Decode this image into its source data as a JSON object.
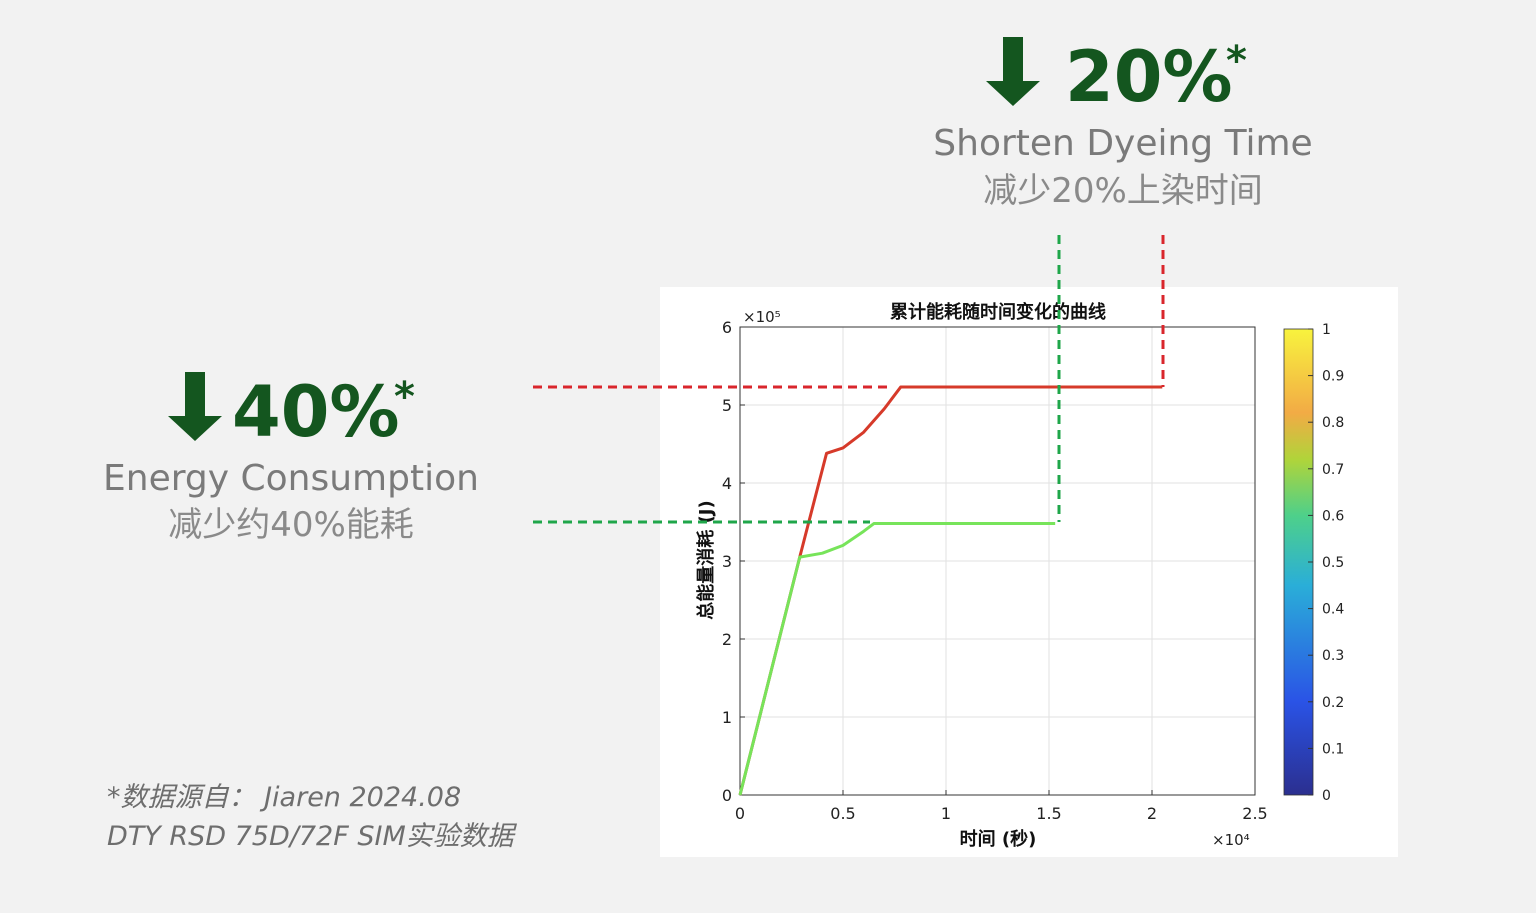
{
  "slide": {
    "right": {
      "percent": "20%",
      "star": "*",
      "en": "Shorten Dyeing Time",
      "zh": "减少20%上染时间"
    },
    "left": {
      "percent": "40%",
      "star": "*",
      "en": "Energy Consumption",
      "zh": "减少约40%能耗"
    },
    "footnote": [
      "*数据源自：  Jiaren 2024.08",
      "DTY RSD 75D/72F SIM实验数据"
    ]
  },
  "chart_data": {
    "type": "line",
    "title": "累计能耗随时间变化的曲线",
    "x_label": "时间 (秒)",
    "y_label": "总能量消耗 (J)",
    "x_multiplier": "×10⁴",
    "y_multiplier": "×10⁵",
    "xlim": [
      0,
      2.5
    ],
    "xticks": [
      0,
      0.5,
      1,
      1.5,
      2,
      2.5
    ],
    "ylim": [
      0,
      6
    ],
    "yticks": [
      0,
      1,
      2,
      3,
      4,
      5,
      6
    ],
    "grid": true,
    "series": [
      {
        "color": "#d63a2a",
        "x": [
          0,
          0.29,
          0.42,
          0.5,
          0.6,
          0.7,
          0.78,
          2.05
        ],
        "values": [
          0,
          3.05,
          4.38,
          4.45,
          4.65,
          4.95,
          5.23,
          5.23
        ]
      },
      {
        "color": "#77e45a",
        "x": [
          0,
          0.29,
          0.4,
          0.5,
          0.6,
          0.65,
          1.53
        ],
        "values": [
          0,
          3.05,
          3.1,
          3.2,
          3.38,
          3.48,
          3.48
        ]
      }
    ],
    "colorbar": {
      "ticks": [
        0,
        0.1,
        0.2,
        0.3,
        0.4,
        0.5,
        0.6,
        0.7,
        0.8,
        0.9,
        1
      ]
    }
  }
}
